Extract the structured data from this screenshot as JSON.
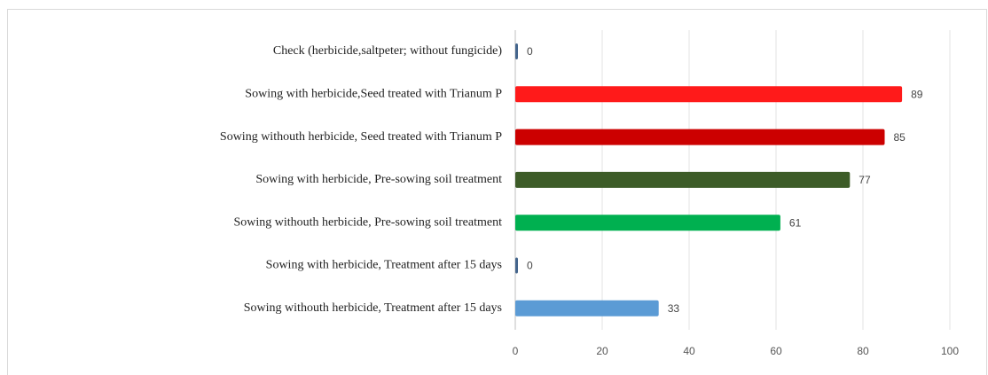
{
  "chart_data": {
    "type": "barh",
    "categories": [
      "Check (herbicide,saltpeter; without fungicide)",
      "Sowing with herbicide,Seed treated  with Trianum P",
      "Sowing withouth herbicide, Seed treated with Trianum P",
      "Sowing with herbicide, Pre-sowing soil treatment",
      "Sowing withouth herbicide, Pre-sowing soil treatment",
      "Sowing with herbicide, Treatment after 15 days",
      "Sowing withouth herbicide, Treatment after 15 days"
    ],
    "values": [
      0,
      89,
      85,
      77,
      61,
      0,
      33
    ],
    "colors": [
      "#44658c",
      "#ff1a1a",
      "#cc0000",
      "#3d5c28",
      "#00b050",
      "#44658c",
      "#5b9bd5"
    ],
    "xlim": [
      0,
      100
    ],
    "xticks": [
      0,
      20,
      40,
      60,
      80,
      100
    ],
    "grid": true
  }
}
